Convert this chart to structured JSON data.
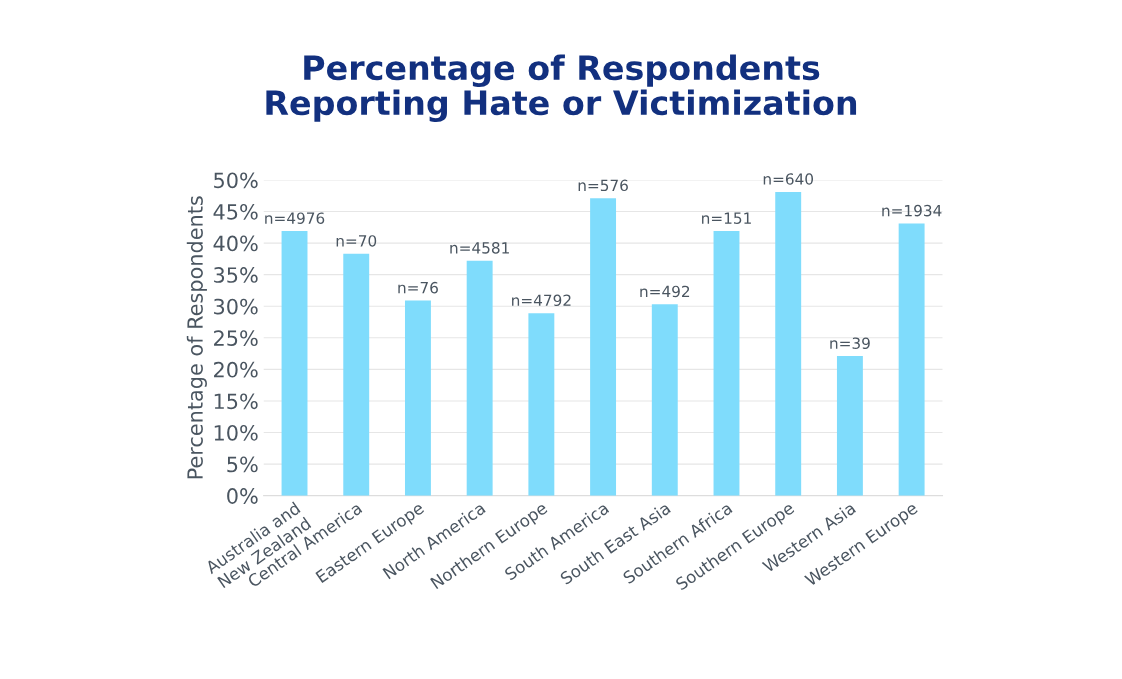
{
  "chart_data": {
    "type": "bar",
    "title": "Percentage of Respondents\nReporting Hate or Victimization",
    "ylabel": "Percentage of Respondents",
    "categories": [
      "Australia and\nNew Zealand",
      "Central America",
      "Eastern Europe",
      "North America",
      "Northern Europe",
      "South America",
      "South East Asia",
      "Southern Africa",
      "Southern Europe",
      "Western Asia",
      "Western Europe"
    ],
    "values": [
      41.9,
      38.3,
      30.9,
      37.2,
      28.9,
      47.1,
      30.3,
      41.9,
      48.1,
      22.1,
      43.1
    ],
    "annotations": [
      {
        "text": "n=4976",
        "x": "Australia and\nNew Zealand",
        "y": 41.9
      },
      {
        "text": "n=70",
        "x": "Central America",
        "y": 38.3
      },
      {
        "text": "n=76",
        "x": "Eastern Europe",
        "y": 30.9
      },
      {
        "text": "n=4581",
        "x": "North America",
        "y": 37.2
      },
      {
        "text": "n=4792",
        "x": "Northern Europe",
        "y": 28.9
      },
      {
        "text": "n=576",
        "x": "South America",
        "y": 47.1
      },
      {
        "text": "n=492",
        "x": "South East Asia",
        "y": 30.3
      },
      {
        "text": "n=151",
        "x": "Southern Africa",
        "y": 41.9
      },
      {
        "text": "n=640",
        "x": "Southern Europe",
        "y": 48.1
      },
      {
        "text": "n=39",
        "x": "Western Asia",
        "y": 22.1
      },
      {
        "text": "n=1934",
        "x": "Western Europe",
        "y": 43.1
      }
    ],
    "color": "#7fdcfc",
    "ylim": [
      0,
      50
    ],
    "yticks": [
      {
        "value": 0,
        "label": "0%"
      },
      {
        "value": 5,
        "label": "5%"
      },
      {
        "value": 10,
        "label": "10%"
      },
      {
        "value": 15,
        "label": "15%"
      },
      {
        "value": 20,
        "label": "20%"
      },
      {
        "value": 25,
        "label": "25%"
      },
      {
        "value": 30,
        "label": "30%"
      },
      {
        "value": 35,
        "label": "35%"
      },
      {
        "value": 40,
        "label": "40%"
      },
      {
        "value": 45,
        "label": "45%"
      },
      {
        "value": 50,
        "label": "50%"
      }
    ],
    "grid": "y"
  }
}
